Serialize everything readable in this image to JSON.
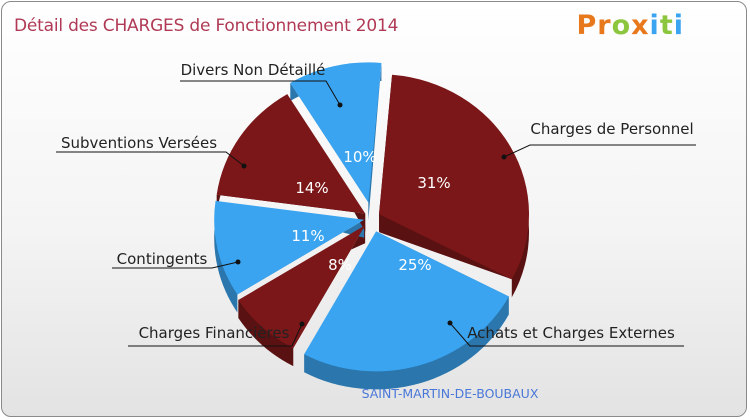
{
  "header": {
    "title": "Détail des CHARGES de Fonctionnement 2014",
    "logo": "Proxiti"
  },
  "footer": {
    "commune": "SAINT-MARTIN-DE-BOUBAUX"
  },
  "colors": {
    "dark": "#7b1718",
    "light": "#3aa4f0",
    "title": "#b03a55"
  },
  "logo_letter_colors": [
    "#e8781c",
    "#e8781c",
    "#8cc63f",
    "#e8781c",
    "#3aa4f0",
    "#8cc63f",
    "#3aa4f0"
  ],
  "chart_data": {
    "type": "pie",
    "title": "Détail des CHARGES de Fonctionnement 2014",
    "unit": "%",
    "slices": [
      {
        "label": "Charges de Personnel",
        "value": 31,
        "display": "31%",
        "color": "dark"
      },
      {
        "label": "Achats et Charges Externes",
        "value": 25,
        "display": "25%",
        "color": "light"
      },
      {
        "label": "Charges Financières",
        "value": 8,
        "display": "8%",
        "color": "dark"
      },
      {
        "label": "Contingents",
        "value": 11,
        "display": "11%",
        "color": "light"
      },
      {
        "label": "Subventions Versées",
        "value": 14,
        "display": "14%",
        "color": "dark"
      },
      {
        "label": "Divers Non Détaillé",
        "value": 10,
        "display": "10%",
        "color": "light"
      }
    ]
  }
}
